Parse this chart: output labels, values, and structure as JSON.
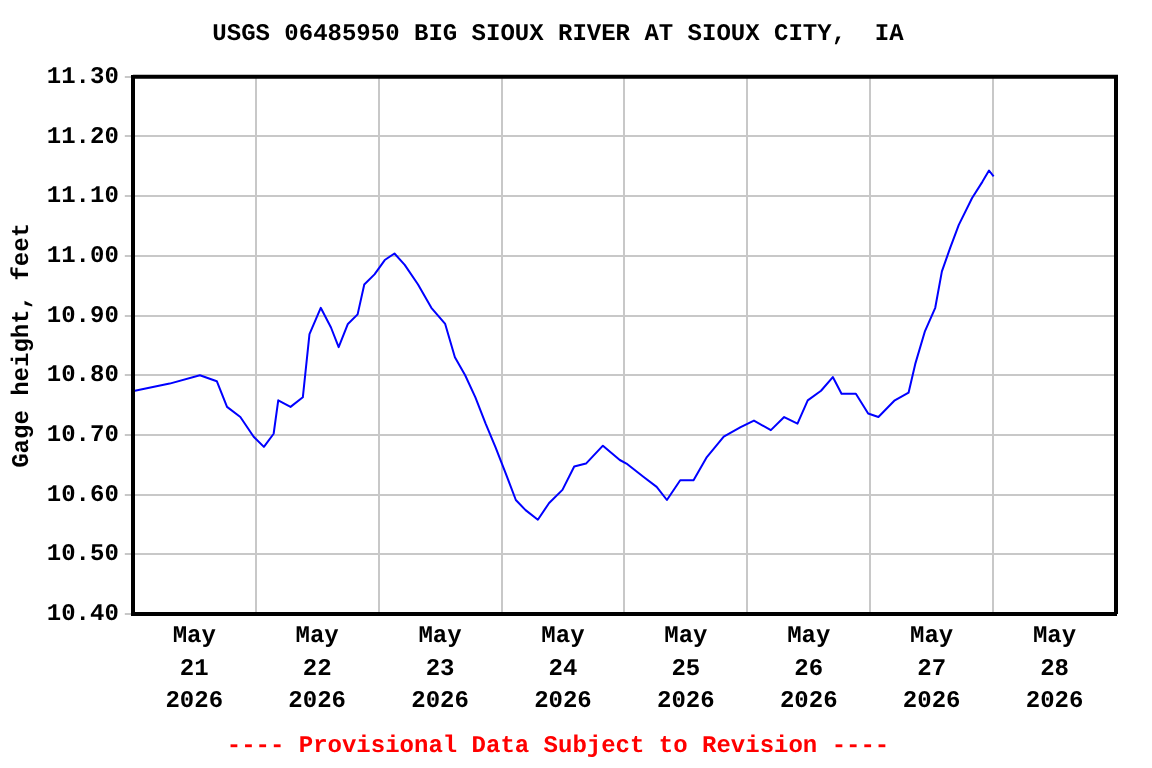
{
  "chart_data": {
    "type": "line",
    "title": "USGS 06485950 BIG SIOUX RIVER AT SIOUX CITY,  IA",
    "ylabel": "Gage height, feet",
    "annotations": [
      "---- Provisional Data Subject to Revision ----"
    ],
    "x": [
      "2026-05-21T00:24",
      "2026-05-21T07:12",
      "2026-05-21T13:06",
      "2026-05-21T16:24",
      "2026-05-21T18:24",
      "2026-05-21T21:00",
      "2026-05-21T23:36",
      "2026-05-22T01:36",
      "2026-05-22T03:30",
      "2026-05-22T04:24",
      "2026-05-22T06:48",
      "2026-05-22T09:12",
      "2026-05-22T10:30",
      "2026-05-22T12:42",
      "2026-05-22T14:42",
      "2026-05-22T16:12",
      "2026-05-22T18:00",
      "2026-05-22T19:54",
      "2026-05-22T21:12",
      "2026-05-22T23:12",
      "2026-05-23T01:12",
      "2026-05-23T03:06",
      "2026-05-23T05:06",
      "2026-05-23T07:42",
      "2026-05-23T10:18",
      "2026-05-23T13:00",
      "2026-05-23T14:54",
      "2026-05-23T16:54",
      "2026-05-23T18:54",
      "2026-05-23T20:54",
      "2026-05-23T22:48",
      "2026-05-24T00:48",
      "2026-05-24T02:48",
      "2026-05-24T04:42",
      "2026-05-24T07:06",
      "2026-05-24T09:18",
      "2026-05-24T11:54",
      "2026-05-24T14:12",
      "2026-05-24T16:30",
      "2026-05-24T19:48",
      "2026-05-24T23:06",
      "2026-05-25T00:24",
      "2026-05-25T03:42",
      "2026-05-25T06:18",
      "2026-05-25T08:18",
      "2026-05-25T10:54",
      "2026-05-25T13:30",
      "2026-05-25T16:06",
      "2026-05-25T19:24",
      "2026-05-25T22:42",
      "2026-05-26T01:18",
      "2026-05-26T04:36",
      "2026-05-26T07:12",
      "2026-05-26T09:48",
      "2026-05-26T11:48",
      "2026-05-26T14:24",
      "2026-05-26T16:42",
      "2026-05-26T18:24",
      "2026-05-26T21:12",
      "2026-05-26T23:36",
      "2026-05-27T01:36",
      "2026-05-27T04:48",
      "2026-05-27T07:30",
      "2026-05-27T08:48",
      "2026-05-27T10:42",
      "2026-05-27T12:42",
      "2026-05-27T14:00",
      "2026-05-27T15:36",
      "2026-05-27T17:18",
      "2026-05-27T19:54",
      "2026-05-27T21:54",
      "2026-05-27T23:12",
      "2026-05-28T00:06"
    ],
    "series": [
      {
        "color": "#0000ff",
        "values": [
          10.774,
          10.786,
          10.8,
          10.79,
          10.747,
          10.73,
          10.697,
          10.68,
          10.702,
          10.758,
          10.747,
          10.763,
          10.869,
          10.913,
          10.88,
          10.847,
          10.886,
          10.902,
          10.952,
          10.969,
          10.993,
          11.004,
          10.985,
          10.952,
          10.913,
          10.886,
          10.83,
          10.8,
          10.763,
          10.719,
          10.68,
          10.636,
          10.591,
          10.574,
          10.558,
          10.586,
          10.608,
          10.647,
          10.652,
          10.682,
          10.658,
          10.652,
          10.63,
          10.613,
          10.591,
          10.624,
          10.624,
          10.663,
          10.697,
          10.713,
          10.724,
          10.708,
          10.73,
          10.719,
          10.758,
          10.774,
          10.797,
          10.769,
          10.769,
          10.736,
          10.73,
          10.758,
          10.771,
          10.819,
          10.874,
          10.913,
          10.974,
          11.013,
          11.052,
          11.097,
          11.124,
          11.143,
          11.133
        ]
      }
    ],
    "xlim": [
      "2026-05-21T00:00",
      "2026-05-29T00:00"
    ],
    "xticks": [
      {
        "value": "2026-05-21T00:00",
        "label": null
      },
      {
        "value": "2026-05-21T12:00",
        "label": "May 21 2026"
      },
      {
        "value": "2026-05-22T00:00",
        "label": null
      },
      {
        "value": "2026-05-22T12:00",
        "label": "May 22 2026"
      },
      {
        "value": "2026-05-23T00:00",
        "label": null
      },
      {
        "value": "2026-05-23T12:00",
        "label": "May 23 2026"
      },
      {
        "value": "2026-05-24T00:00",
        "label": null
      },
      {
        "value": "2026-05-24T12:00",
        "label": "May 24 2026"
      },
      {
        "value": "2026-05-25T00:00",
        "label": null
      },
      {
        "value": "2026-05-25T12:00",
        "label": "May 25 2026"
      },
      {
        "value": "2026-05-26T00:00",
        "label": null
      },
      {
        "value": "2026-05-26T12:00",
        "label": "May 26 2026"
      },
      {
        "value": "2026-05-27T00:00",
        "label": null
      },
      {
        "value": "2026-05-27T12:00",
        "label": "May 27 2026"
      },
      {
        "value": "2026-05-28T00:00",
        "label": null
      },
      {
        "value": "2026-05-28T12:00",
        "label": "May 28 2026"
      },
      {
        "value": "2026-05-29T00:00",
        "label": null
      }
    ],
    "ylim": [
      10.4,
      11.3
    ],
    "yticks": [
      {
        "value": 10.4,
        "label": "10.40"
      },
      {
        "value": 10.5,
        "label": "10.50"
      },
      {
        "value": 10.6,
        "label": "10.60"
      },
      {
        "value": 10.7,
        "label": "10.70"
      },
      {
        "value": 10.8,
        "label": "10.80"
      },
      {
        "value": 10.9,
        "label": "10.90"
      },
      {
        "value": 11.0,
        "label": "11.00"
      },
      {
        "value": 11.1,
        "label": "11.10"
      },
      {
        "value": 11.2,
        "label": "11.20"
      },
      {
        "value": 11.3,
        "label": "11.30"
      }
    ],
    "grid": true,
    "legend": false,
    "marker": "none",
    "line_style": "solid"
  }
}
